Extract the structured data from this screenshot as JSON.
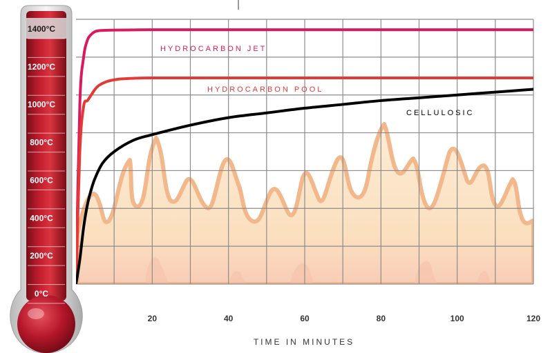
{
  "chart_data": {
    "type": "line",
    "xlabel": "TIME IN MINUTES",
    "ylabel": "",
    "xlim": [
      0,
      120
    ],
    "ylim": [
      0,
      1400
    ],
    "x_ticks": [
      "20",
      "40",
      "60",
      "80",
      "100",
      "120"
    ],
    "y_ticks": [
      "0°C",
      "200°C",
      "400°C",
      "600°C",
      "800°C",
      "1000°C",
      "1200°C",
      "1400°C"
    ],
    "grid": true,
    "series": [
      {
        "name": "HYDROCARBON JET",
        "color": "#d81b60",
        "x": [
          0,
          1,
          2,
          3,
          4,
          5,
          6,
          8,
          10,
          15,
          20,
          30,
          60,
          90,
          120
        ],
        "y": [
          0,
          950,
          1200,
          1290,
          1320,
          1335,
          1340,
          1342,
          1343,
          1344,
          1345,
          1345,
          1345,
          1345,
          1345
        ]
      },
      {
        "name": "HYDROCARBON POOL",
        "color": "#e53935",
        "x": [
          0,
          1,
          2,
          3,
          4,
          5,
          6,
          8,
          10,
          12,
          15,
          20,
          30,
          60,
          90,
          120
        ],
        "y": [
          0,
          700,
          940,
          970,
          1000,
          1030,
          1050,
          1070,
          1080,
          1085,
          1088,
          1090,
          1090,
          1090,
          1090,
          1090
        ]
      },
      {
        "name": "CELLULOSIC",
        "color": "#000000",
        "x": [
          0,
          1,
          2,
          3,
          4,
          5,
          7,
          10,
          15,
          20,
          30,
          40,
          50,
          60,
          70,
          80,
          90,
          100,
          110,
          120
        ],
        "y": [
          0,
          130,
          300,
          420,
          500,
          560,
          640,
          700,
          760,
          790,
          840,
          880,
          905,
          930,
          950,
          970,
          985,
          1000,
          1015,
          1030
        ]
      }
    ]
  },
  "colors": {
    "thermometer_dark": "#8e0f1d",
    "thermometer_light": "#d6293b",
    "flame_fill": "#fbe1bf",
    "flame_stroke": "#f1b07f"
  }
}
